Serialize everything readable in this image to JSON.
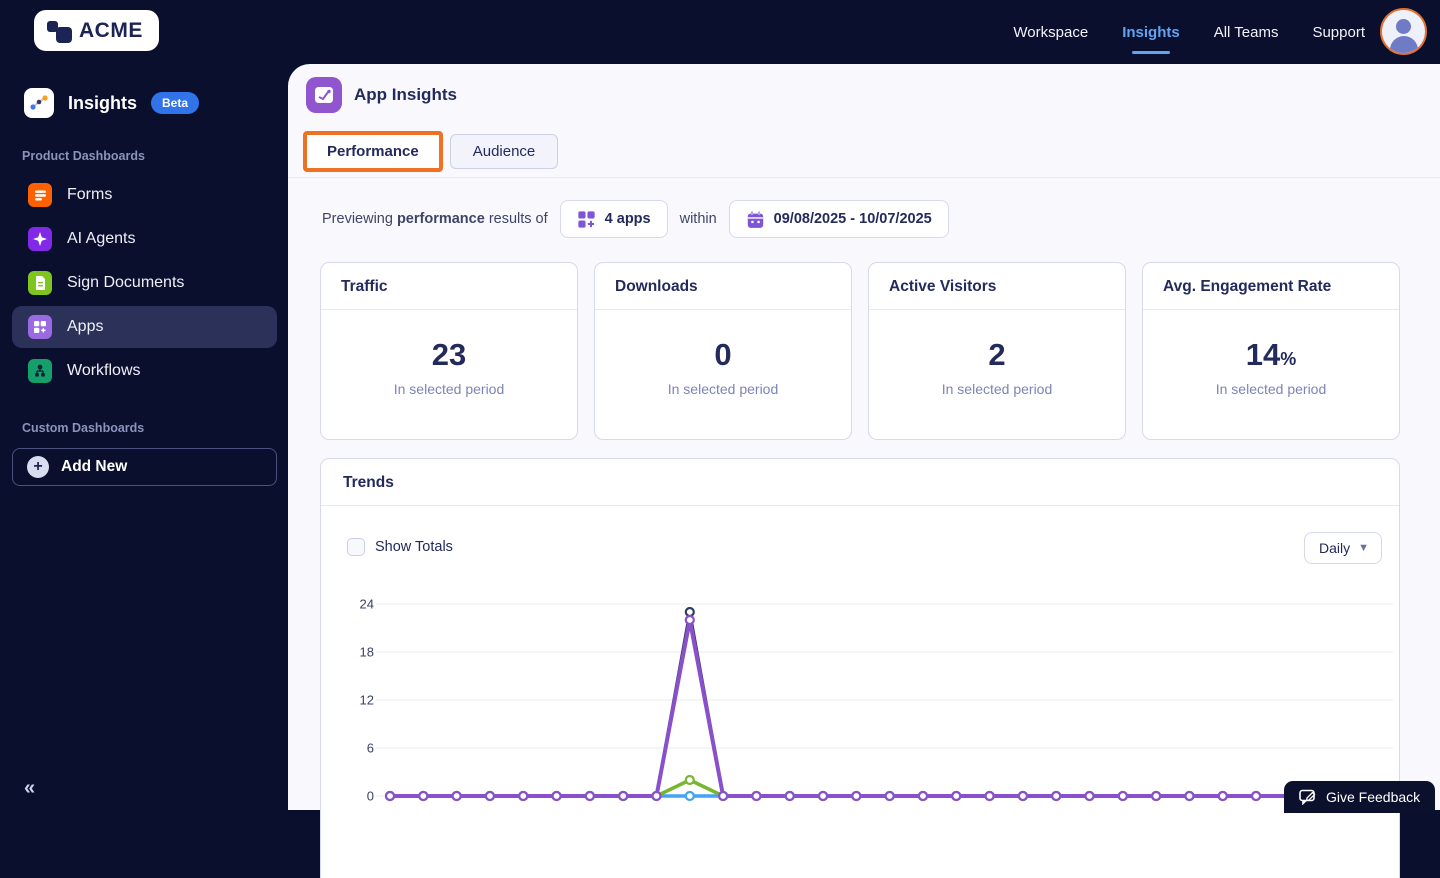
{
  "topbar": {
    "logo_text": "ACME",
    "nav": [
      {
        "label": "Workspace",
        "active": false
      },
      {
        "label": "Insights",
        "active": true
      },
      {
        "label": "All Teams",
        "active": false
      },
      {
        "label": "Support",
        "active": false
      }
    ]
  },
  "sidebar": {
    "app_label": "Insights",
    "beta_badge": "Beta",
    "section_product": "Product Dashboards",
    "items": [
      {
        "label": "Forms",
        "icon": "forms-icon",
        "color": "#ff6100",
        "selected": false
      },
      {
        "label": "AI Agents",
        "icon": "ai-agents-icon",
        "color": "#8229e8",
        "selected": false
      },
      {
        "label": "Sign Documents",
        "icon": "sign-documents-icon",
        "color": "#7fc51f",
        "selected": false
      },
      {
        "label": "Apps",
        "icon": "apps-icon",
        "color": "#9a6be0",
        "selected": true
      },
      {
        "label": "Workflows",
        "icon": "workflows-icon",
        "color": "#15a06b",
        "selected": false
      }
    ],
    "section_custom": "Custom Dashboards",
    "add_new_label": "Add New",
    "collapse_glyph": "«"
  },
  "main": {
    "page_title": "App Insights",
    "tabs": [
      {
        "label": "Performance",
        "active": true
      },
      {
        "label": "Audience",
        "active": false
      }
    ],
    "filter": {
      "prefix": "Previewing ",
      "bold": "performance",
      "suffix": " results of",
      "apps_button": "4 apps",
      "within": "within",
      "date_button": "09/08/2025 - 10/07/2025"
    },
    "stat_cards": [
      {
        "title": "Traffic",
        "value": "23",
        "suffix": "",
        "caption": "In selected period"
      },
      {
        "title": "Downloads",
        "value": "0",
        "suffix": "",
        "caption": "In selected period"
      },
      {
        "title": "Active Visitors",
        "value": "2",
        "suffix": "",
        "caption": "In selected period"
      },
      {
        "title": "Avg. Engagement Rate",
        "value": "14",
        "suffix": "%",
        "caption": "In selected period"
      }
    ],
    "trends": {
      "title": "Trends",
      "show_totals_label": "Show Totals",
      "show_totals_checked": false,
      "interval_value": "Daily"
    },
    "feedback_label": "Give Feedback"
  },
  "chart_data": {
    "type": "line",
    "title": "Trends",
    "x_count": 30,
    "x_labels_visible": false,
    "y_ticks": [
      0,
      6,
      12,
      18,
      24
    ],
    "ylim": [
      0,
      24
    ],
    "grid": "horizontal",
    "legend": "none",
    "series": [
      {
        "name": "navy-line",
        "color": "#343b63",
        "width": 3,
        "values": [
          0,
          0,
          0,
          0,
          0,
          0,
          0,
          0,
          0,
          23,
          0,
          0,
          0,
          0,
          0,
          0,
          0,
          0,
          0,
          0,
          0,
          0,
          0,
          0,
          0,
          0,
          0,
          0,
          0,
          0
        ]
      },
      {
        "name": "blue-line",
        "color": "#41a4f5",
        "width": 3.5,
        "values": [
          0,
          0,
          0,
          0,
          0,
          0,
          0,
          0,
          0,
          0,
          0,
          0,
          0,
          0,
          0,
          0,
          0,
          0,
          0,
          0,
          0,
          0,
          0,
          0,
          0,
          0,
          0,
          0,
          0,
          0
        ]
      },
      {
        "name": "green-line",
        "color": "#78b62f",
        "width": 3.5,
        "values": [
          0,
          0,
          0,
          0,
          0,
          0,
          0,
          0,
          0,
          2,
          0,
          0,
          0,
          0,
          0,
          0,
          0,
          0,
          0,
          0,
          0,
          0,
          0,
          0,
          0,
          0,
          0,
          0,
          0,
          0
        ]
      },
      {
        "name": "purple-line",
        "color": "#8a4fcb",
        "width": 4,
        "values": [
          0,
          0,
          0,
          0,
          0,
          0,
          0,
          0,
          0,
          22,
          0,
          0,
          0,
          0,
          0,
          0,
          0,
          0,
          0,
          0,
          0,
          0,
          0,
          0,
          0,
          0,
          0,
          0,
          0,
          0
        ]
      }
    ]
  }
}
